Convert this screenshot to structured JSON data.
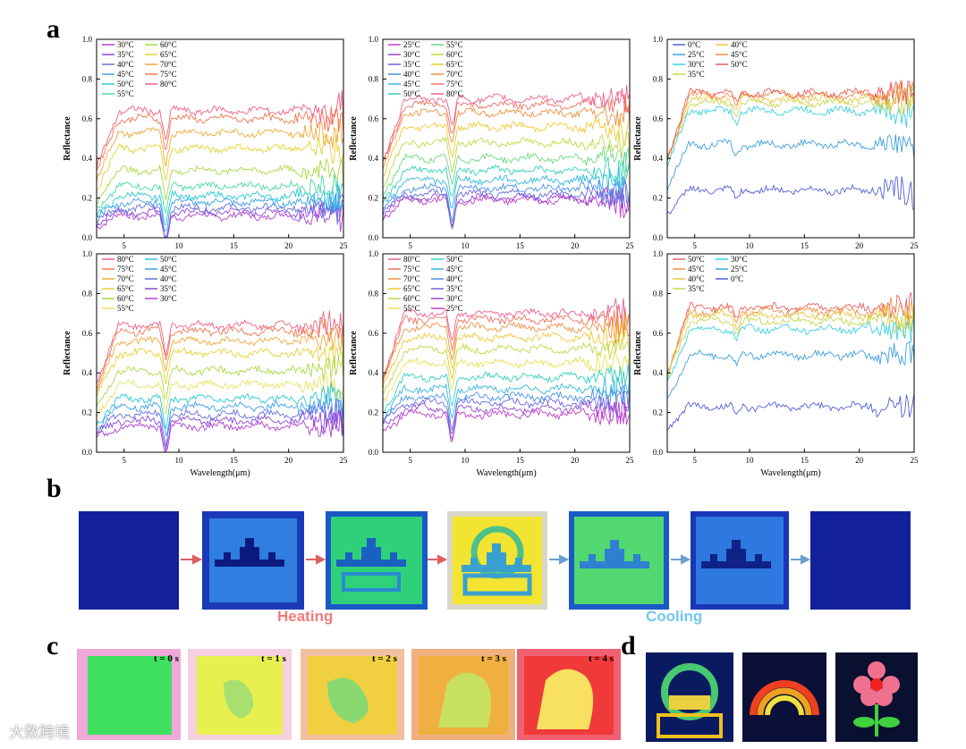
{
  "panel_letters": {
    "a": "a",
    "b": "b",
    "c": "c",
    "d": "d"
  },
  "labels": {
    "heating": "Heating",
    "cooling": "Cooling"
  },
  "time_labels": [
    "t = 0 s",
    "t = 1 s",
    "t = 2 s",
    "t = 3 s",
    "t = 4 s"
  ],
  "watermark": "大数跨境",
  "colors": {
    "heating": "#f07b7b",
    "cooling": "#72c8ee",
    "arrow_heat": "#e06060",
    "arrow_cool": "#6aa0d0"
  },
  "chart_data": [
    {
      "type": "line",
      "ylabel": "Reflectance",
      "xlabel": "",
      "xlim": [
        2.5,
        25
      ],
      "ylim": [
        0,
        1.0
      ],
      "xticks": [
        "5",
        "10",
        "15",
        "20",
        "25"
      ],
      "yticks": [
        "0.0",
        "0.2",
        "0.4",
        "0.6",
        "0.8",
        "1.0"
      ],
      "legend_cols": 2,
      "series": [
        {
          "name": "30°C",
          "color": "#b040d0",
          "level": 0.11
        },
        {
          "name": "35°C",
          "color": "#8a48d8",
          "level": 0.13
        },
        {
          "name": "40°C",
          "color": "#6470e0",
          "level": 0.15
        },
        {
          "name": "45°C",
          "color": "#3ea0e8",
          "level": 0.18
        },
        {
          "name": "50°C",
          "color": "#28c8d8",
          "level": 0.21
        },
        {
          "name": "55°C",
          "color": "#48d8a0",
          "level": 0.26
        },
        {
          "name": "60°C",
          "color": "#a8d840",
          "level": 0.34
        },
        {
          "name": "65°C",
          "color": "#e8d030",
          "level": 0.45
        },
        {
          "name": "70°C",
          "color": "#f0a838",
          "level": 0.53
        },
        {
          "name": "75°C",
          "color": "#f07850",
          "level": 0.6
        },
        {
          "name": "80°C",
          "color": "#f06080",
          "level": 0.64
        }
      ]
    },
    {
      "type": "line",
      "ylabel": "Reflectance",
      "xlabel": "",
      "xlim": [
        2.5,
        25
      ],
      "ylim": [
        0,
        1.0
      ],
      "xticks": [
        "5",
        "10",
        "15",
        "20",
        "25"
      ],
      "yticks": [
        "0.0",
        "0.2",
        "0.4",
        "0.6",
        "0.8",
        "1.0"
      ],
      "legend_cols": 2,
      "series": [
        {
          "name": "25°C",
          "color": "#c040c8",
          "level": 0.19
        },
        {
          "name": "30°C",
          "color": "#9848d0",
          "level": 0.2
        },
        {
          "name": "35°C",
          "color": "#6868e0",
          "level": 0.22
        },
        {
          "name": "40°C",
          "color": "#4890e8",
          "level": 0.25
        },
        {
          "name": "45°C",
          "color": "#30b8e0",
          "level": 0.29
        },
        {
          "name": "50°C",
          "color": "#30d0c0",
          "level": 0.34
        },
        {
          "name": "55°C",
          "color": "#70d880",
          "level": 0.4
        },
        {
          "name": "60°C",
          "color": "#c0d840",
          "level": 0.48
        },
        {
          "name": "65°C",
          "color": "#f0c830",
          "level": 0.56
        },
        {
          "name": "70°C",
          "color": "#f09040",
          "level": 0.63
        },
        {
          "name": "75°C",
          "color": "#f07060",
          "level": 0.67
        },
        {
          "name": "80°C",
          "color": "#f06090",
          "level": 0.7
        }
      ]
    },
    {
      "type": "line",
      "ylabel": "Reflectance",
      "xlabel": "",
      "xlim": [
        2.5,
        25
      ],
      "ylim": [
        0,
        1.0
      ],
      "xticks": [
        "5",
        "10",
        "15",
        "20",
        "25"
      ],
      "yticks": [
        "0.0",
        "0.2",
        "0.4",
        "0.6",
        "0.8",
        "1.0"
      ],
      "legend_cols": 2,
      "series": [
        {
          "name": "0°C",
          "color": "#5060d8",
          "level": 0.24
        },
        {
          "name": "25°C",
          "color": "#40a0e0",
          "level": 0.47
        },
        {
          "name": "30°C",
          "color": "#38d0e8",
          "level": 0.64
        },
        {
          "name": "35°C",
          "color": "#c8d850",
          "level": 0.68
        },
        {
          "name": "40°C",
          "color": "#e8c840",
          "level": 0.7
        },
        {
          "name": "45°C",
          "color": "#f09048",
          "level": 0.72
        },
        {
          "name": "50°C",
          "color": "#e86060",
          "level": 0.73
        }
      ]
    },
    {
      "type": "line",
      "ylabel": "Reflectance",
      "xlabel": "Wavelength(μm)",
      "xlim": [
        2.5,
        25
      ],
      "ylim": [
        0,
        1.0
      ],
      "xticks": [
        "5",
        "10",
        "15",
        "20",
        "25"
      ],
      "yticks": [
        "0.0",
        "0.2",
        "0.4",
        "0.6",
        "0.8",
        "1.0"
      ],
      "legend_cols": 2,
      "series": [
        {
          "name": "80°C",
          "color": "#f06080",
          "level": 0.64
        },
        {
          "name": "75°C",
          "color": "#f07850",
          "level": 0.61
        },
        {
          "name": "70°C",
          "color": "#f0a838",
          "level": 0.56
        },
        {
          "name": "65°C",
          "color": "#e8d030",
          "level": 0.5
        },
        {
          "name": "60°C",
          "color": "#a8d840",
          "level": 0.41
        },
        {
          "name": "55°C",
          "color": "#e8e060",
          "level": 0.34
        },
        {
          "name": "50°C",
          "color": "#28c8d8",
          "level": 0.27
        },
        {
          "name": "45°C",
          "color": "#3ea0e8",
          "level": 0.23
        },
        {
          "name": "40°C",
          "color": "#6470e0",
          "level": 0.19
        },
        {
          "name": "35°C",
          "color": "#8a48d8",
          "level": 0.16
        },
        {
          "name": "30°C",
          "color": "#b040d0",
          "level": 0.13
        }
      ]
    },
    {
      "type": "line",
      "ylabel": "Reflectance",
      "xlabel": "Wavelength(μm)",
      "xlim": [
        2.5,
        25
      ],
      "ylim": [
        0,
        1.0
      ],
      "xticks": [
        "5",
        "10",
        "15",
        "20",
        "25"
      ],
      "yticks": [
        "0.0",
        "0.2",
        "0.4",
        "0.6",
        "0.8",
        "1.0"
      ],
      "legend_cols": 2,
      "series": [
        {
          "name": "80°C",
          "color": "#f06090",
          "level": 0.7
        },
        {
          "name": "75°C",
          "color": "#f07060",
          "level": 0.67
        },
        {
          "name": "70°C",
          "color": "#f09040",
          "level": 0.63
        },
        {
          "name": "65°C",
          "color": "#f0c830",
          "level": 0.58
        },
        {
          "name": "60°C",
          "color": "#c0d840",
          "level": 0.52
        },
        {
          "name": "55°C",
          "color": "#e8e050",
          "level": 0.45
        },
        {
          "name": "50°C",
          "color": "#30d0c0",
          "level": 0.38
        },
        {
          "name": "45°C",
          "color": "#30b8e0",
          "level": 0.32
        },
        {
          "name": "40°C",
          "color": "#4890e8",
          "level": 0.28
        },
        {
          "name": "35°C",
          "color": "#6868e0",
          "level": 0.25
        },
        {
          "name": "30°C",
          "color": "#9848d0",
          "level": 0.22
        },
        {
          "name": "25°C",
          "color": "#c040c8",
          "level": 0.19
        }
      ]
    },
    {
      "type": "line",
      "ylabel": "Reflectance",
      "xlabel": "Wavelength(μm)",
      "xlim": [
        2.5,
        25
      ],
      "ylim": [
        0,
        1.0
      ],
      "xticks": [
        "5",
        "10",
        "15",
        "20",
        "25"
      ],
      "yticks": [
        "0.0",
        "0.2",
        "0.4",
        "0.6",
        "0.8",
        "1.0"
      ],
      "legend_cols": 2,
      "series": [
        {
          "name": "50°C",
          "color": "#e86060",
          "level": 0.73
        },
        {
          "name": "45°C",
          "color": "#f09048",
          "level": 0.71
        },
        {
          "name": "40°C",
          "color": "#e8c840",
          "level": 0.69
        },
        {
          "name": "35°C",
          "color": "#c8d850",
          "level": 0.66
        },
        {
          "name": "30°C",
          "color": "#38d0e8",
          "level": 0.62
        },
        {
          "name": "25°C",
          "color": "#40a0e0",
          "level": 0.49
        },
        {
          "name": "0°C",
          "color": "#5060d8",
          "level": 0.23
        }
      ]
    }
  ]
}
